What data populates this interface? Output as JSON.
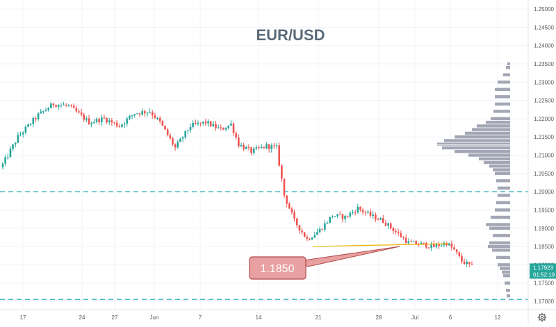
{
  "chart_data": {
    "type": "candlestick",
    "title": "EUR/USD",
    "x_tick_labels": [
      "17",
      "24",
      "27",
      "Jun",
      "7",
      "14",
      "21",
      "28",
      "Jul",
      "6",
      "12"
    ],
    "y_tick_labels": [
      "1.25000",
      "1.24500",
      "1.24000",
      "1.23500",
      "1.23000",
      "1.22500",
      "1.22000",
      "1.21500",
      "1.21000",
      "1.20500",
      "1.20000",
      "1.19500",
      "1.19000",
      "1.18500",
      "1.18000",
      "1.17500",
      "1.17000"
    ],
    "ylim": [
      1.1675,
      1.2515
    ],
    "last_price": {
      "price": "1.17923",
      "countdown": "01:52:19",
      "color": "#26a69a"
    },
    "horizontal_lines": [
      {
        "price": 1.2,
        "style": "dashed",
        "color": "#45b7c9"
      },
      {
        "price": 1.1705,
        "style": "dashed",
        "color": "#45b7c9"
      }
    ],
    "annotation": {
      "text": "1.1850",
      "level": 1.185,
      "fill": "#e8a0a0",
      "border": "#b14a4a",
      "line_color": "#f0b400"
    },
    "anchor_prices": [
      [
        0,
        1.2075
      ],
      [
        6,
        1.215
      ],
      [
        14,
        1.221
      ],
      [
        20,
        1.224
      ],
      [
        26,
        1.2235
      ],
      [
        34,
        1.219
      ],
      [
        40,
        1.22
      ],
      [
        46,
        1.218
      ],
      [
        52,
        1.2215
      ],
      [
        58,
        1.222
      ],
      [
        62,
        1.219
      ],
      [
        68,
        1.212
      ],
      [
        74,
        1.218
      ],
      [
        80,
        1.219
      ],
      [
        86,
        1.217
      ],
      [
        90,
        1.2185
      ],
      [
        93,
        1.213
      ],
      [
        98,
        1.211
      ],
      [
        104,
        1.2125
      ],
      [
        108,
        1.212
      ],
      [
        111,
        1.199
      ],
      [
        115,
        1.192
      ],
      [
        120,
        1.187
      ],
      [
        125,
        1.1895
      ],
      [
        130,
        1.1935
      ],
      [
        135,
        1.193
      ],
      [
        140,
        1.1955
      ],
      [
        145,
        1.1935
      ],
      [
        150,
        1.192
      ],
      [
        155,
        1.189
      ],
      [
        160,
        1.186
      ],
      [
        166,
        1.1855
      ],
      [
        170,
        1.185
      ],
      [
        175,
        1.186
      ],
      [
        178,
        1.184
      ],
      [
        181,
        1.181
      ],
      [
        185,
        1.1795
      ]
    ],
    "volume_profile": [
      [
        1.235,
        4
      ],
      [
        1.234,
        6
      ],
      [
        1.232,
        10
      ],
      [
        1.23,
        18
      ],
      [
        1.228,
        22
      ],
      [
        1.226,
        22
      ],
      [
        1.224,
        22
      ],
      [
        1.222,
        24
      ],
      [
        1.22,
        28
      ],
      [
        1.219,
        35
      ],
      [
        1.218,
        48
      ],
      [
        1.217,
        55
      ],
      [
        1.216,
        65
      ],
      [
        1.215,
        80
      ],
      [
        1.214,
        95
      ],
      [
        1.213,
        105
      ],
      [
        1.212,
        98
      ],
      [
        1.211,
        80
      ],
      [
        1.21,
        60
      ],
      [
        1.209,
        45
      ],
      [
        1.208,
        38
      ],
      [
        1.207,
        30
      ],
      [
        1.206,
        25
      ],
      [
        1.205,
        22
      ],
      [
        1.203,
        20
      ],
      [
        1.201,
        18
      ],
      [
        1.199,
        18
      ],
      [
        1.197,
        20
      ],
      [
        1.195,
        22
      ],
      [
        1.193,
        28
      ],
      [
        1.191,
        35
      ],
      [
        1.19,
        30
      ],
      [
        1.188,
        25
      ],
      [
        1.186,
        30
      ],
      [
        1.185,
        32
      ],
      [
        1.184,
        26
      ],
      [
        1.182,
        20
      ],
      [
        1.18,
        18
      ],
      [
        1.179,
        15
      ],
      [
        1.178,
        12
      ],
      [
        1.177,
        10
      ],
      [
        1.175,
        8
      ],
      [
        1.173,
        6
      ],
      [
        1.1715,
        5
      ]
    ],
    "grid": true
  },
  "colors": {
    "up": "#26a69a",
    "down": "#ef5350",
    "profile": "#a3a6b4",
    "axis_text": "#555555",
    "title": "#5a6b7a"
  },
  "icons": {
    "settings": "gear-icon"
  }
}
